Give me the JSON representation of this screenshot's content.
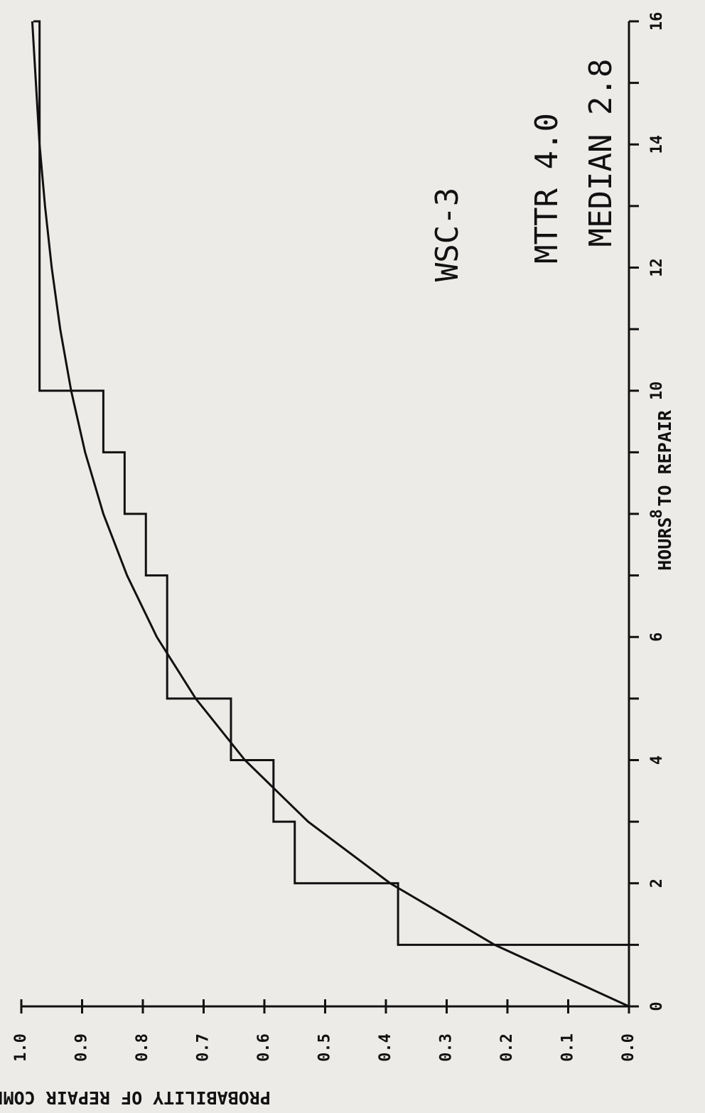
{
  "chart_data": {
    "type": "line",
    "title": "",
    "xlabel": "HOURS TO REPAIR",
    "ylabel": "PROBABILITY OF REPAIR COMPLETION",
    "xlim": [
      0,
      16
    ],
    "ylim": [
      0.0,
      1.0
    ],
    "x_ticks": [
      0,
      2,
      4,
      6,
      8,
      10,
      12,
      14,
      16
    ],
    "x_tick_labels": [
      "0",
      "2",
      "4",
      "6",
      "8",
      "10",
      "12",
      "14",
      "16"
    ],
    "y_ticks": [
      0.0,
      0.1,
      0.2,
      0.3,
      0.4,
      0.5,
      0.6,
      0.7,
      0.8,
      0.9,
      1.0
    ],
    "y_tick_labels": [
      "0.0",
      "0.1",
      "0.2",
      "0.3",
      "0.4",
      "0.5",
      "0.6",
      "0.7",
      "0.8",
      "0.9",
      "1.0"
    ],
    "grid": false,
    "series": [
      {
        "style": "step",
        "x": [
          0,
          1,
          2,
          3,
          4,
          5,
          7,
          8,
          9,
          10,
          16
        ],
        "y": [
          0.0,
          0.38,
          0.55,
          0.585,
          0.655,
          0.76,
          0.795,
          0.83,
          0.865,
          0.97,
          0.98
        ]
      },
      {
        "style": "curve",
        "x": [
          0,
          1,
          2,
          3,
          4,
          5,
          6,
          7,
          8,
          9,
          10,
          11,
          12,
          13,
          14,
          15,
          16
        ],
        "y": [
          0.0,
          0.221,
          0.393,
          0.528,
          0.632,
          0.713,
          0.777,
          0.826,
          0.865,
          0.895,
          0.918,
          0.936,
          0.95,
          0.961,
          0.97,
          0.976,
          0.982
        ]
      }
    ],
    "annotations": [
      {
        "text": "WSC-3"
      },
      {
        "text": "MTTR 4.0"
      },
      {
        "text": "MEDIAN 2.8"
      }
    ]
  }
}
